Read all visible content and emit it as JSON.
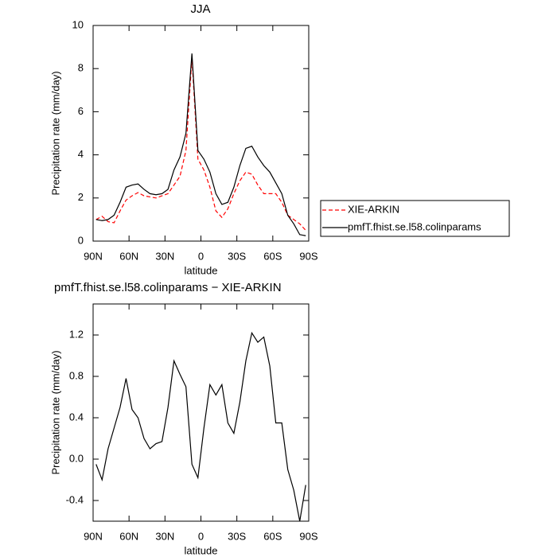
{
  "chart_data": [
    {
      "type": "line",
      "title": "JJA",
      "x_label": "latitude",
      "y_label": "Precipitation rate (mm/day)",
      "x": [
        87.5,
        82.5,
        77.5,
        72.5,
        67.5,
        62.5,
        57.5,
        52.5,
        47.5,
        42.5,
        37.5,
        32.5,
        27.5,
        22.5,
        17.5,
        12.5,
        7.5,
        2.5,
        -2.5,
        -7.5,
        -12.5,
        -17.5,
        -22.5,
        -27.5,
        -32.5,
        -37.5,
        -42.5,
        -47.5,
        -52.5,
        -57.5,
        -62.5,
        -67.5,
        -72.5,
        -77.5,
        -82.5,
        -87.5
      ],
      "series": [
        {
          "name": "XIE-ARKIN",
          "color": "#ff0000",
          "line_style": "dashed",
          "values": [
            1.0,
            1.15,
            0.9,
            0.85,
            1.4,
            1.9,
            2.1,
            2.25,
            2.1,
            2.05,
            2.0,
            2.1,
            2.2,
            2.6,
            3.0,
            4.2,
            8.5,
            3.8,
            3.3,
            2.5,
            1.4,
            1.1,
            1.5,
            2.2,
            2.8,
            3.2,
            3.1,
            2.6,
            2.2,
            2.2,
            2.2,
            1.8,
            1.2,
            1.0,
            0.8,
            0.5
          ]
        },
        {
          "name": "pmfT.fhist.se.l58.colinparams",
          "color": "#000000",
          "line_style": "solid",
          "values": [
            1.0,
            0.95,
            1.0,
            1.2,
            1.8,
            2.5,
            2.6,
            2.65,
            2.4,
            2.2,
            2.15,
            2.2,
            2.4,
            3.3,
            3.9,
            5.0,
            8.7,
            4.2,
            3.8,
            3.2,
            2.2,
            1.7,
            1.8,
            2.5,
            3.5,
            4.3,
            4.4,
            3.9,
            3.5,
            3.2,
            2.7,
            2.2,
            1.2,
            0.8,
            0.3,
            0.25
          ]
        }
      ],
      "xlim": [
        90,
        -90
      ],
      "xticks": [
        {
          "value": 90,
          "label": "90N"
        },
        {
          "value": 60,
          "label": "60N"
        },
        {
          "value": 30,
          "label": "30N"
        },
        0,
        {
          "value": -30,
          "label": "30S"
        },
        {
          "value": -60,
          "label": "60S"
        },
        {
          "value": -90,
          "label": "90S"
        }
      ],
      "ylim": [
        0,
        10
      ],
      "yticks": [
        0,
        2,
        4,
        6,
        8,
        10
      ],
      "legend": "right"
    },
    {
      "type": "line",
      "title": "pmfT.fhist.se.l58.colinparams − XIE-ARKIN",
      "x_label": "latitude",
      "y_label": "Precipitation rate (mm/day)",
      "x": [
        87.5,
        82.5,
        77.5,
        72.5,
        67.5,
        62.5,
        57.5,
        52.5,
        47.5,
        42.5,
        37.5,
        32.5,
        27.5,
        22.5,
        17.5,
        12.5,
        7.5,
        2.5,
        -2.5,
        -7.5,
        -12.5,
        -17.5,
        -22.5,
        -27.5,
        -32.5,
        -37.5,
        -42.5,
        -47.5,
        -52.5,
        -57.5,
        -62.5,
        -67.5,
        -72.5,
        -77.5,
        -82.5,
        -87.5
      ],
      "series": [
        {
          "color": "#000000",
          "line_style": "solid",
          "values": [
            -0.05,
            -0.2,
            0.1,
            0.3,
            0.5,
            0.78,
            0.48,
            0.4,
            0.2,
            0.1,
            0.15,
            0.17,
            0.5,
            0.95,
            0.82,
            0.7,
            -0.05,
            -0.18,
            0.3,
            0.72,
            0.62,
            0.72,
            0.35,
            0.25,
            0.55,
            0.95,
            1.22,
            1.13,
            1.18,
            0.9,
            0.35,
            0.35,
            -0.1,
            -0.3,
            -0.6,
            -0.25
          ]
        }
      ],
      "xlim": [
        90,
        -90
      ],
      "xticks": [
        {
          "value": 90,
          "label": "90N"
        },
        {
          "value": 60,
          "label": "60N"
        },
        {
          "value": 30,
          "label": "30N"
        },
        0,
        {
          "value": -30,
          "label": "30S"
        },
        {
          "value": -60,
          "label": "60S"
        },
        {
          "value": -90,
          "label": "90S"
        }
      ],
      "ylim": [
        -0.6,
        1.5
      ],
      "yticks": [
        -0.4,
        {
          "value": 0,
          "label": "0.0"
        },
        0.4,
        0.8,
        1.2
      ]
    }
  ]
}
